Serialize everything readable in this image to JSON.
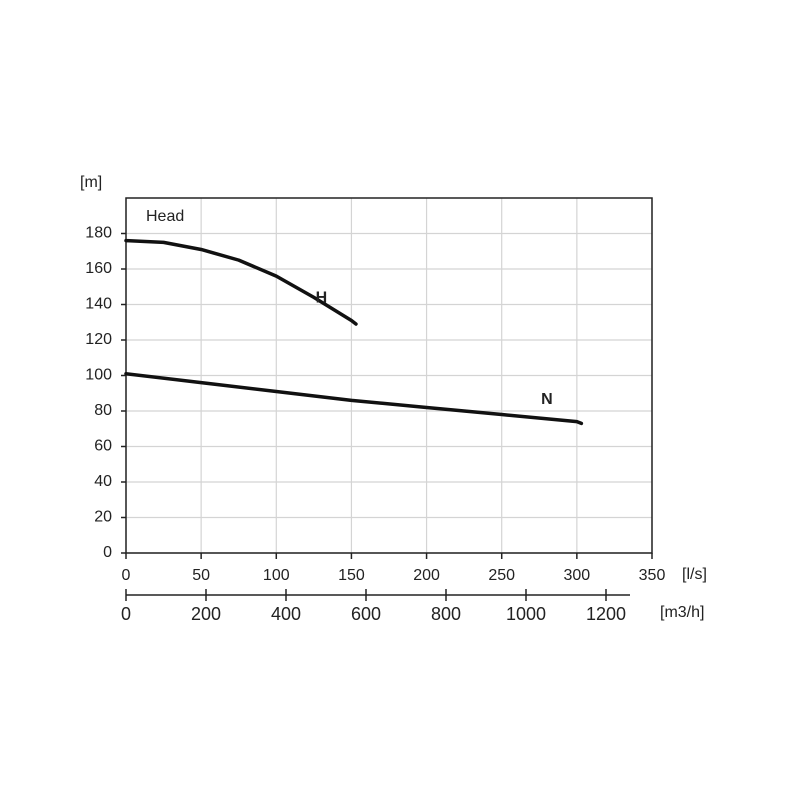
{
  "chart_data": {
    "type": "line",
    "y_label": "[m]",
    "x_label": "[l/s]",
    "x2_label": "[m3/h]",
    "annotation": "Head",
    "xlim": [
      0,
      350
    ],
    "xticks": [
      0,
      50,
      100,
      150,
      200,
      250,
      300,
      350
    ],
    "x2lim": [
      0,
      1260
    ],
    "x2ticks": [
      0,
      200,
      400,
      600,
      800,
      1000,
      1200
    ],
    "ylim": [
      0,
      200
    ],
    "yticks": [
      0,
      20,
      40,
      60,
      80,
      100,
      120,
      140,
      160,
      180
    ],
    "grid": true,
    "series": [
      {
        "name": "H",
        "color": "#111111",
        "x": [
          0,
          25,
          50,
          75,
          100,
          125,
          150,
          153
        ],
        "values": [
          176,
          175,
          171,
          165,
          156,
          144,
          131,
          129
        ]
      },
      {
        "name": "N",
        "color": "#111111",
        "x": [
          0,
          50,
          100,
          150,
          200,
          250,
          300,
          303
        ],
        "values": [
          101,
          96,
          91,
          86,
          82,
          78,
          74,
          73
        ]
      }
    ]
  }
}
